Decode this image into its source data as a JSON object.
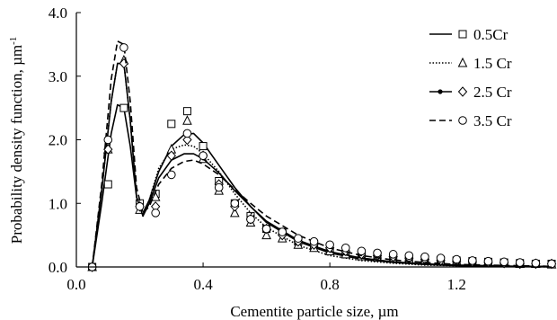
{
  "chart_data": {
    "type": "line",
    "title": "",
    "xlabel": "Cementite particle size, µm",
    "ylabel": "Probability density function, µm",
    "ylabel_superscript": "-1",
    "xlim": [
      0.0,
      1.5
    ],
    "ylim": [
      0.0,
      4.0
    ],
    "x_ticks": [
      "0.0",
      "0.4",
      "0.8",
      "1.2"
    ],
    "y_ticks": [
      "0.0",
      "1.0",
      "2.0",
      "3.0",
      "4.0"
    ],
    "grid": false,
    "legend_position": "top-right",
    "series": [
      {
        "name": "0.5Cr",
        "line_style": "solid",
        "marker": "square",
        "color": "#000000",
        "curve": {
          "x": [
            0.05,
            0.08,
            0.11,
            0.13,
            0.15,
            0.17,
            0.19,
            0.21,
            0.23,
            0.26,
            0.3,
            0.34,
            0.37,
            0.4,
            0.45,
            0.5,
            0.55,
            0.6,
            0.7,
            0.8,
            0.9,
            1.0,
            1.1,
            1.2,
            1.3,
            1.4,
            1.5
          ],
          "y": [
            0.0,
            1.0,
            2.1,
            2.55,
            2.5,
            1.9,
            1.1,
            0.85,
            1.05,
            1.5,
            1.9,
            2.08,
            2.1,
            1.95,
            1.6,
            1.25,
            0.95,
            0.7,
            0.4,
            0.22,
            0.12,
            0.07,
            0.04,
            0.02,
            0.01,
            0.01,
            0.0
          ]
        },
        "points": {
          "x": [
            0.05,
            0.1,
            0.15,
            0.2,
            0.25,
            0.3,
            0.35,
            0.4,
            0.45,
            0.5,
            0.55,
            0.6,
            0.65,
            0.7,
            0.75,
            0.8,
            0.85,
            0.9,
            0.95,
            1.0,
            1.05,
            1.1,
            1.15,
            1.2,
            1.25,
            1.3,
            1.35,
            1.4,
            1.45,
            1.5
          ],
          "y": [
            0.0,
            1.3,
            2.5,
            1.0,
            1.15,
            2.25,
            2.45,
            1.9,
            1.35,
            1.0,
            0.8,
            0.6,
            0.55,
            0.4,
            0.35,
            0.25,
            0.2,
            0.18,
            0.16,
            0.15,
            0.13,
            0.12,
            0.11,
            0.1,
            0.09,
            0.08,
            0.07,
            0.06,
            0.05,
            0.05
          ]
        }
      },
      {
        "name": "1.5 Cr",
        "line_style": "dotted",
        "marker": "triangle",
        "color": "#000000",
        "curve": {
          "x": [
            0.05,
            0.08,
            0.11,
            0.13,
            0.15,
            0.17,
            0.19,
            0.21,
            0.23,
            0.26,
            0.3,
            0.34,
            0.37,
            0.4,
            0.45,
            0.5,
            0.55,
            0.6,
            0.7,
            0.8,
            0.9,
            1.0,
            1.1,
            1.2,
            1.3,
            1.4,
            1.5
          ],
          "y": [
            0.0,
            1.2,
            2.6,
            3.2,
            3.2,
            2.3,
            1.1,
            0.8,
            1.05,
            1.55,
            1.85,
            1.92,
            1.9,
            1.78,
            1.5,
            1.15,
            0.85,
            0.62,
            0.34,
            0.18,
            0.1,
            0.06,
            0.03,
            0.02,
            0.01,
            0.01,
            0.0
          ]
        },
        "points": {
          "x": [
            0.05,
            0.1,
            0.15,
            0.2,
            0.25,
            0.3,
            0.35,
            0.4,
            0.45,
            0.5,
            0.55,
            0.6,
            0.65,
            0.7,
            0.75,
            0.8,
            0.85,
            0.9,
            0.95,
            1.0,
            1.05,
            1.1,
            1.15,
            1.2,
            1.25,
            1.3,
            1.35,
            1.4,
            1.45,
            1.5
          ],
          "y": [
            0.0,
            1.85,
            3.25,
            0.9,
            1.1,
            1.85,
            2.3,
            1.7,
            1.2,
            0.85,
            0.7,
            0.5,
            0.45,
            0.35,
            0.3,
            0.25,
            0.2,
            0.17,
            0.15,
            0.13,
            0.12,
            0.11,
            0.1,
            0.09,
            0.08,
            0.07,
            0.06,
            0.05,
            0.05,
            0.04
          ]
        }
      },
      {
        "name": "2.5 Cr",
        "line_style": "solid-dot",
        "marker": "diamond",
        "color": "#000000",
        "curve": {
          "x": [
            0.05,
            0.08,
            0.11,
            0.13,
            0.15,
            0.17,
            0.19,
            0.21,
            0.23,
            0.26,
            0.3,
            0.34,
            0.37,
            0.4,
            0.45,
            0.5,
            0.55,
            0.6,
            0.7,
            0.8,
            0.9,
            1.0,
            1.1,
            1.2,
            1.3,
            1.4,
            1.5
          ],
          "y": [
            0.0,
            1.2,
            2.6,
            3.2,
            3.2,
            2.3,
            1.1,
            0.8,
            1.0,
            1.4,
            1.68,
            1.78,
            1.78,
            1.7,
            1.48,
            1.2,
            0.95,
            0.72,
            0.42,
            0.24,
            0.14,
            0.08,
            0.05,
            0.03,
            0.02,
            0.01,
            0.01
          ]
        },
        "points": {
          "x": [
            0.05,
            0.1,
            0.15,
            0.2,
            0.25,
            0.3,
            0.35,
            0.4,
            0.45,
            0.5,
            0.55,
            0.6,
            0.65,
            0.7,
            0.75,
            0.8,
            0.85,
            0.9,
            0.95,
            1.0,
            1.05,
            1.1,
            1.15,
            1.2,
            1.25,
            1.3,
            1.35,
            1.4,
            1.45,
            1.5
          ],
          "y": [
            0.0,
            1.85,
            3.2,
            0.95,
            0.95,
            1.75,
            2.0,
            1.75,
            1.3,
            0.95,
            0.75,
            0.6,
            0.5,
            0.4,
            0.35,
            0.3,
            0.25,
            0.2,
            0.18,
            0.16,
            0.14,
            0.12,
            0.1,
            0.09,
            0.08,
            0.07,
            0.06,
            0.05,
            0.05,
            0.05
          ]
        }
      },
      {
        "name": "3.5 Cr",
        "line_style": "dashed",
        "marker": "circle",
        "color": "#000000",
        "curve": {
          "x": [
            0.05,
            0.08,
            0.11,
            0.13,
            0.15,
            0.17,
            0.19,
            0.21,
            0.23,
            0.26,
            0.3,
            0.34,
            0.37,
            0.4,
            0.45,
            0.5,
            0.55,
            0.6,
            0.7,
            0.8,
            0.9,
            1.0,
            1.1,
            1.2,
            1.3,
            1.4,
            1.5
          ],
          "y": [
            0.0,
            1.3,
            2.95,
            3.55,
            3.5,
            2.6,
            1.25,
            0.85,
            0.95,
            1.3,
            1.55,
            1.66,
            1.68,
            1.62,
            1.45,
            1.22,
            1.0,
            0.8,
            0.5,
            0.3,
            0.18,
            0.11,
            0.07,
            0.04,
            0.03,
            0.02,
            0.01
          ]
        },
        "points": {
          "x": [
            0.05,
            0.1,
            0.15,
            0.2,
            0.25,
            0.3,
            0.35,
            0.4,
            0.45,
            0.5,
            0.55,
            0.6,
            0.65,
            0.7,
            0.75,
            0.8,
            0.85,
            0.9,
            0.95,
            1.0,
            1.05,
            1.1,
            1.15,
            1.2,
            1.25,
            1.3,
            1.35,
            1.4,
            1.45,
            1.5
          ],
          "y": [
            0.0,
            2.0,
            3.45,
            0.95,
            0.85,
            1.45,
            2.1,
            1.75,
            1.25,
            1.0,
            0.75,
            0.6,
            0.55,
            0.45,
            0.4,
            0.35,
            0.3,
            0.25,
            0.22,
            0.2,
            0.18,
            0.16,
            0.14,
            0.12,
            0.1,
            0.09,
            0.08,
            0.07,
            0.06,
            0.05
          ]
        }
      }
    ]
  }
}
